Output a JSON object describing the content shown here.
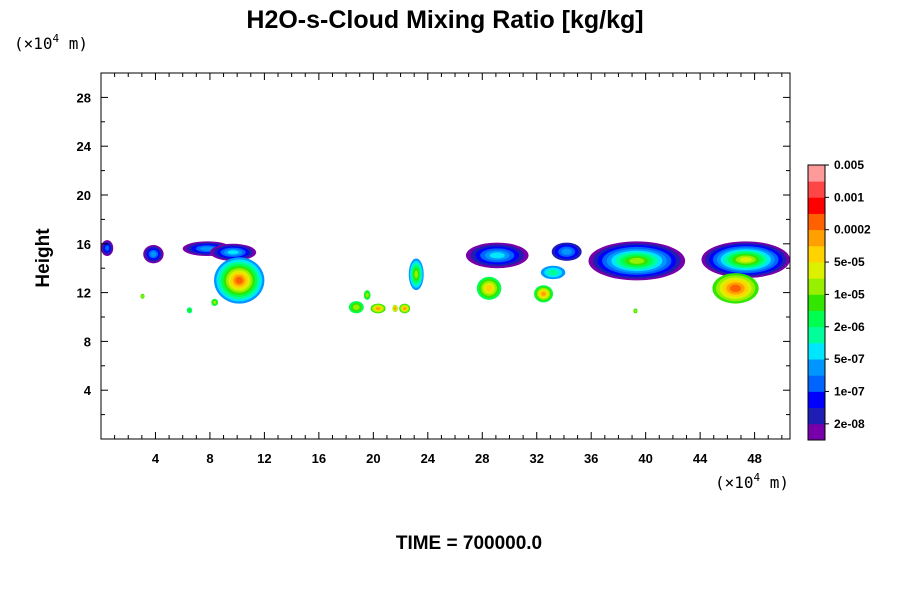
{
  "chart_data": {
    "type": "heatmap",
    "title": "H2O-s-Cloud Mixing Ratio [kg/kg]",
    "ylabel": "Height",
    "xlabel": "",
    "x_unit": {
      "prefix": "(×10",
      "exp": "4",
      "suffix": " m)"
    },
    "y_unit": {
      "prefix": "(×10",
      "exp": "4",
      "suffix": " m)"
    },
    "footer": "TIME = 700000.0",
    "xlim": [
      0,
      50.6
    ],
    "ylim": [
      0,
      30
    ],
    "x_ticks": [
      "4",
      "8",
      "12",
      "16",
      "20",
      "24",
      "28",
      "32",
      "36",
      "40",
      "44",
      "48"
    ],
    "y_ticks": [
      "4",
      "8",
      "12",
      "16",
      "20",
      "24",
      "28"
    ],
    "x_tick_values": [
      4,
      8,
      12,
      16,
      20,
      24,
      28,
      32,
      36,
      40,
      44,
      48
    ],
    "y_tick_values": [
      4,
      8,
      12,
      16,
      20,
      24,
      28
    ],
    "legend": {
      "colors": [
        "#7700aa",
        "#1e1eb4",
        "#0000ff",
        "#0064ff",
        "#0096ff",
        "#00e6ff",
        "#00ff9b",
        "#00ff50",
        "#32e600",
        "#96f000",
        "#dcf000",
        "#ffd200",
        "#ffa000",
        "#ff6000",
        "#ff0000",
        "#ff4646",
        "#ff9a9a"
      ],
      "labels": [
        "2e-08",
        "1e-07",
        "5e-07",
        "2e-06",
        "1e-05",
        "5e-05",
        "0.0002",
        "0.001",
        "0.005"
      ],
      "label_bands": [
        1,
        3,
        5,
        7,
        9,
        11,
        13,
        15,
        17
      ]
    },
    "regions": [
      {
        "x": [
          0.0,
          0.9
        ],
        "y": [
          15.0,
          16.3
        ],
        "levels": [
          1,
          2,
          3,
          4
        ]
      },
      {
        "x": [
          3.1,
          4.6
        ],
        "y": [
          14.4,
          15.9
        ],
        "levels": [
          1,
          2,
          3,
          4,
          5
        ]
      },
      {
        "x": [
          6.0,
          9.6
        ],
        "y": [
          15.0,
          16.2
        ],
        "levels": [
          1,
          2,
          3,
          4,
          5
        ]
      },
      {
        "x": [
          8.0,
          11.4
        ],
        "y": [
          14.6,
          16.0
        ],
        "levels": [
          1,
          2,
          3,
          4,
          5,
          6
        ]
      },
      {
        "x": [
          8.3,
          12.0
        ],
        "y": [
          11.1,
          14.9
        ],
        "levels": [
          5,
          6,
          7,
          8,
          9,
          10,
          11,
          12,
          13,
          14
        ]
      },
      {
        "x": [
          2.9,
          3.2
        ],
        "y": [
          11.5,
          11.9
        ],
        "levels": [
          9,
          10
        ]
      },
      {
        "x": [
          6.3,
          6.7
        ],
        "y": [
          10.3,
          10.8
        ],
        "levels": [
          7,
          8,
          9
        ]
      },
      {
        "x": [
          8.1,
          8.6
        ],
        "y": [
          10.9,
          11.5
        ],
        "levels": [
          8,
          9,
          10
        ]
      },
      {
        "x": [
          18.2,
          19.3
        ],
        "y": [
          10.3,
          11.3
        ],
        "levels": [
          8,
          9,
          10
        ]
      },
      {
        "x": [
          19.3,
          19.8
        ],
        "y": [
          11.4,
          12.2
        ],
        "levels": [
          8,
          9,
          10
        ]
      },
      {
        "x": [
          19.8,
          20.9
        ],
        "y": [
          10.3,
          11.1
        ],
        "levels": [
          9,
          10,
          11,
          12,
          13
        ]
      },
      {
        "x": [
          21.4,
          21.8
        ],
        "y": [
          10.4,
          11.0
        ],
        "levels": [
          10,
          11,
          12,
          13
        ]
      },
      {
        "x": [
          21.9,
          22.7
        ],
        "y": [
          10.3,
          11.1
        ],
        "levels": [
          9,
          10,
          11,
          12,
          13
        ]
      },
      {
        "x": [
          22.6,
          23.7
        ],
        "y": [
          12.2,
          14.8
        ],
        "levels": [
          5,
          6,
          7,
          8,
          9,
          10
        ]
      },
      {
        "x": [
          26.8,
          31.4
        ],
        "y": [
          14.0,
          16.1
        ],
        "levels": [
          1,
          2,
          3,
          4,
          5,
          6
        ]
      },
      {
        "x": [
          27.6,
          29.4
        ],
        "y": [
          11.4,
          13.3
        ],
        "levels": [
          8,
          9,
          10,
          11,
          12
        ]
      },
      {
        "x": [
          31.8,
          33.2
        ],
        "y": [
          11.2,
          12.6
        ],
        "levels": [
          8,
          9,
          10,
          11,
          12,
          13
        ]
      },
      {
        "x": [
          32.3,
          34.1
        ],
        "y": [
          13.1,
          14.2
        ],
        "levels": [
          5,
          6,
          7
        ]
      },
      {
        "x": [
          33.1,
          35.3
        ],
        "y": [
          14.6,
          16.1
        ],
        "levels": [
          2,
          3,
          4,
          5
        ]
      },
      {
        "x": [
          35.8,
          42.9
        ],
        "y": [
          13.0,
          16.2
        ],
        "levels": [
          1,
          2,
          3,
          4,
          5,
          6,
          7,
          8,
          9,
          10
        ]
      },
      {
        "x": [
          39.1,
          39.4
        ],
        "y": [
          10.3,
          10.7
        ],
        "levels": [
          9,
          10
        ]
      },
      {
        "x": [
          44.1,
          50.6
        ],
        "y": [
          13.2,
          16.2
        ],
        "levels": [
          1,
          2,
          3,
          4,
          5,
          6,
          7,
          8,
          9,
          10,
          11
        ]
      },
      {
        "x": [
          44.9,
          48.3
        ],
        "y": [
          11.1,
          13.6
        ],
        "levels": [
          9,
          10,
          11,
          12,
          13,
          14
        ]
      }
    ]
  }
}
